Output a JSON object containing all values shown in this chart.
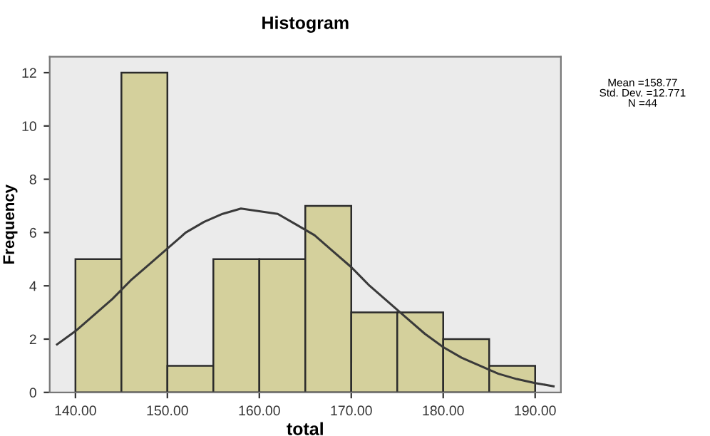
{
  "chart_data": {
    "type": "histogram",
    "title": "Histogram",
    "xlabel": "total",
    "ylabel": "Frequency",
    "bins": [
      140,
      145,
      150,
      155,
      160,
      165,
      170,
      175,
      180,
      185,
      190
    ],
    "values": [
      5,
      12,
      1,
      5,
      5,
      7,
      3,
      3,
      2,
      1
    ],
    "color": "#d4d09c",
    "series": [
      {
        "type": "line",
        "color": "#3a3a3a",
        "x": [
          138,
          140,
          142,
          144,
          146,
          148,
          150,
          152,
          154,
          156,
          158,
          160,
          162,
          164,
          166,
          168,
          170,
          172,
          174,
          176,
          178,
          180,
          182,
          184,
          186,
          188,
          190,
          192
        ],
        "values": [
          1.8,
          2.3,
          2.9,
          3.5,
          4.2,
          4.8,
          5.4,
          6.0,
          6.4,
          6.7,
          6.9,
          6.8,
          6.7,
          6.3,
          5.9,
          5.3,
          4.7,
          4.0,
          3.4,
          2.8,
          2.2,
          1.7,
          1.3,
          1.0,
          0.7,
          0.5,
          0.35,
          0.23
        ]
      }
    ],
    "xlim": [
      137.2,
      192.8
    ],
    "ylim": [
      0,
      12.6
    ],
    "xticks": [
      {
        "value": 140,
        "label": "140.00"
      },
      {
        "value": 150,
        "label": "150.00"
      },
      {
        "value": 160,
        "label": "160.00"
      },
      {
        "value": 170,
        "label": "170.00"
      },
      {
        "value": 180,
        "label": "180.00"
      },
      {
        "value": 190,
        "label": "190.00"
      }
    ],
    "yticks": [
      0,
      2,
      4,
      6,
      8,
      10,
      12
    ],
    "grid": false,
    "annotations": [
      "Mean =158.77\nStd. Dev. =12.771\nN =44"
    ]
  }
}
